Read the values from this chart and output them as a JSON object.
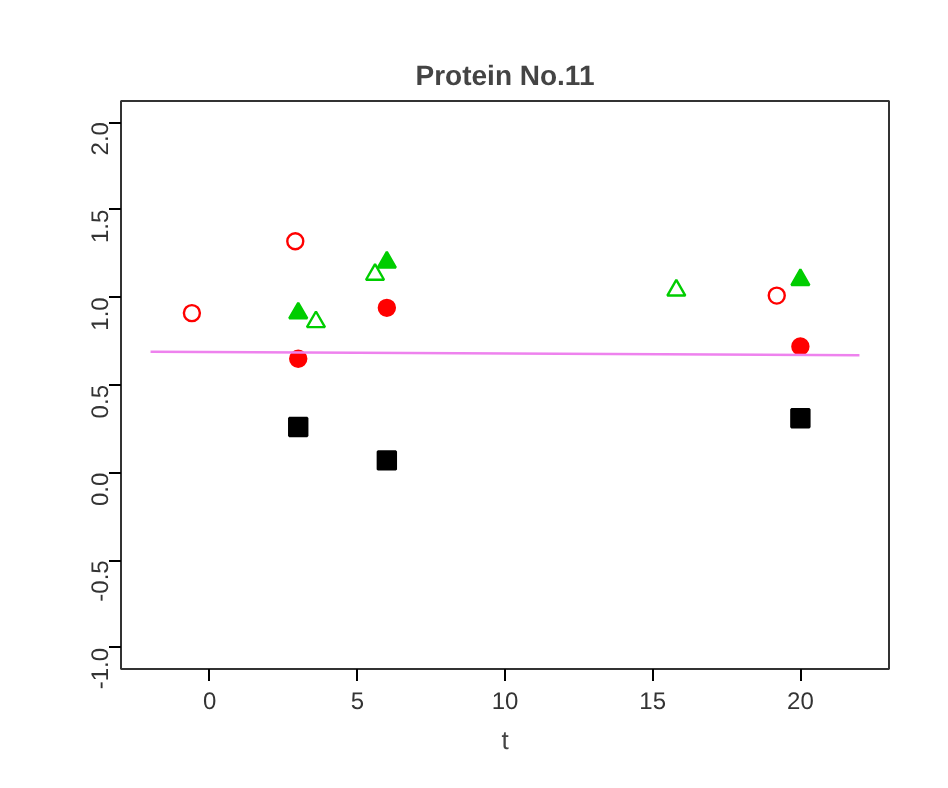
{
  "chart_data": {
    "type": "scatter",
    "title": "Protein No.11",
    "xlabel": "t",
    "xlim": [
      -3,
      23
    ],
    "xticks": [
      0,
      5,
      10,
      15,
      20
    ],
    "ylim": [
      -1.12,
      2.12
    ],
    "yticks": [
      {
        "value": -1,
        "label": "-1.0"
      },
      -0.5,
      {
        "value": 0,
        "label": "0.0"
      },
      0.5,
      {
        "value": 1,
        "label": "1.0"
      },
      1.5,
      {
        "value": 2,
        "label": "2.0"
      }
    ],
    "grid": false,
    "series": [
      {
        "color": "#ff0000",
        "marker": "circle_open",
        "x": [
          -0.6,
          2.9,
          19.2
        ],
        "values": [
          0.91,
          1.32,
          1.01
        ]
      },
      {
        "color": "#ff0000",
        "marker": "circle",
        "x": [
          3.0,
          6.0,
          20.0
        ],
        "values": [
          0.65,
          0.94,
          0.72
        ]
      },
      {
        "color": "#00cd00",
        "marker": "triangle",
        "x": [
          3.0,
          6.0,
          20.0
        ],
        "values": [
          0.91,
          1.2,
          1.1
        ]
      },
      {
        "color": "#00cd00",
        "marker": "triangle_open",
        "x": [
          3.6,
          5.6,
          15.8
        ],
        "values": [
          0.86,
          1.13,
          1.04
        ]
      },
      {
        "color": "#000000",
        "marker": "square",
        "x": [
          3.0,
          6.0,
          20.0
        ],
        "values": [
          0.26,
          0.07,
          0.31
        ]
      },
      {
        "type": "line",
        "color": "#ee82ee",
        "x": [
          -2,
          22
        ],
        "values": [
          0.69,
          0.67
        ]
      }
    ]
  }
}
